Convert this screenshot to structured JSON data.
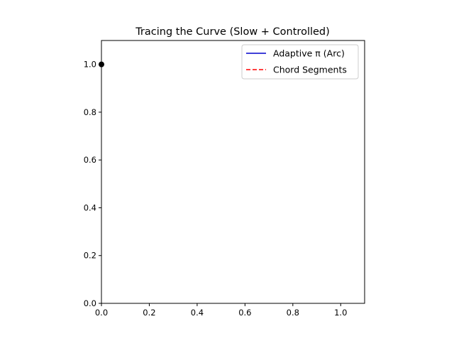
{
  "chart_data": {
    "type": "line",
    "title": "Tracing the Curve (Slow + Controlled)",
    "xlabel": "",
    "ylabel": "",
    "xlim": [
      0,
      1.1
    ],
    "ylim": [
      0,
      1.1
    ],
    "x_ticks": [
      0.0,
      0.2,
      0.4,
      0.6,
      0.8,
      1.0
    ],
    "y_ticks": [
      0.0,
      0.2,
      0.4,
      0.6,
      0.8,
      1.0
    ],
    "x_tick_labels": [
      "0.0",
      "0.2",
      "0.4",
      "0.6",
      "0.8",
      "1.0"
    ],
    "y_tick_labels": [
      "0.0",
      "0.2",
      "0.4",
      "0.6",
      "0.8",
      "1.0"
    ],
    "grid": false,
    "legend_position": "top-right",
    "series": [
      {
        "name": "Adaptive π (Arc)",
        "color": "#0000cc",
        "style": "solid",
        "x": [],
        "y": []
      },
      {
        "name": "Chord Segments",
        "color": "#ff0000",
        "style": "dashed",
        "x": [],
        "y": []
      }
    ],
    "points": [
      {
        "x": 0.0,
        "y": 1.0,
        "color": "#000000"
      }
    ]
  }
}
